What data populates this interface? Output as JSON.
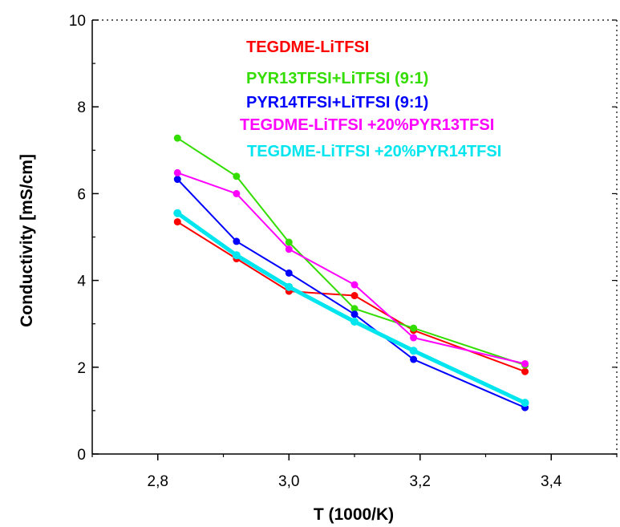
{
  "chart_data": {
    "type": "line",
    "title": "",
    "xlabel": "T (1000/K)",
    "ylabel": "Conductivity [mS/cm]",
    "xlim": [
      2.7,
      3.5
    ],
    "ylim": [
      0,
      10
    ],
    "xticks": [
      "2,8",
      "3,0",
      "3,2",
      "3,4"
    ],
    "xtick_values": [
      2.8,
      3.0,
      3.2,
      3.4
    ],
    "yticks": [
      "0",
      "2",
      "4",
      "6",
      "8",
      "10"
    ],
    "ytick_values": [
      0,
      2,
      4,
      6,
      8,
      10
    ],
    "grid": false,
    "legend_position": "top-right",
    "x": [
      2.83,
      2.92,
      3.0,
      3.1,
      3.19,
      3.36
    ],
    "series": [
      {
        "name": "TEGDME-LiTFSI",
        "color": "#ff0000",
        "values": [
          5.35,
          4.5,
          3.75,
          3.65,
          2.85,
          1.9
        ]
      },
      {
        "name": "PYR13TFSI+LiTFSI (9:1)",
        "color": "#33dd00",
        "values": [
          7.28,
          6.4,
          4.88,
          3.35,
          2.9,
          2.05
        ]
      },
      {
        "name": "PYR14TFSI+LiTFSI (9:1)",
        "color": "#0000ff",
        "values": [
          6.33,
          4.9,
          4.17,
          3.22,
          2.18,
          1.07
        ]
      },
      {
        "name": "TEGDME-LiTFSI +20%PYR13TFSI",
        "color": "#ff00ff",
        "values": [
          6.48,
          6.0,
          4.72,
          3.9,
          2.68,
          2.08
        ]
      },
      {
        "name": "TEGDME-LiTFSI +20%PYR14TFSI",
        "color": "#00e5ee",
        "values": [
          5.55,
          4.58,
          3.85,
          3.05,
          2.38,
          1.18
        ]
      }
    ]
  }
}
